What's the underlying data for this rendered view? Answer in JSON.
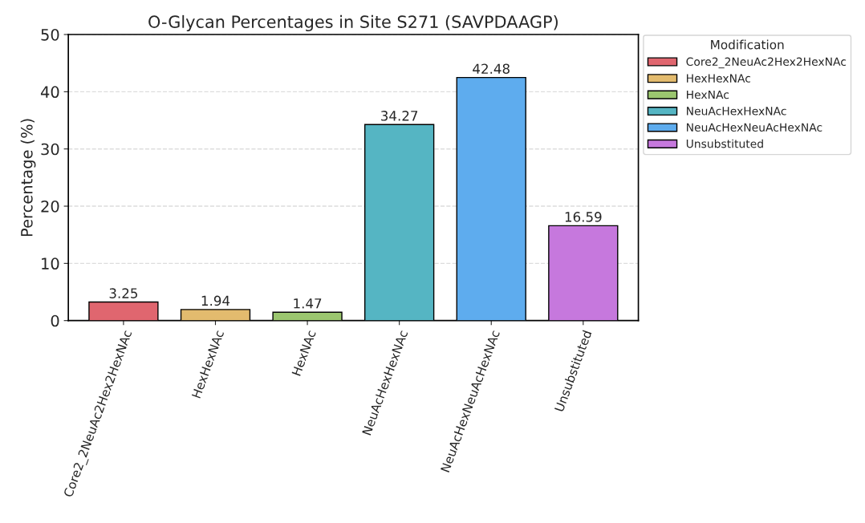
{
  "chart_data": {
    "type": "bar",
    "title": "O-Glycan Percentages in Site S271 (SAVPDAAGP)",
    "ylabel": "Percentage (%)",
    "legend_title": "Modification",
    "categories": [
      "Core2_2NeuAc2Hex2HexNAc",
      "HexHexNAc",
      "HexNAc",
      "NeuAcHexHexNAc",
      "NeuAcHexNeuAcHexNAc",
      "Unsubstituted"
    ],
    "series": [
      {
        "name": "Core2_2NeuAc2Hex2HexNAc",
        "color": "#e0666f",
        "values": [
          3.25,
          null,
          null,
          null,
          null,
          null
        ]
      },
      {
        "name": "HexHexNAc",
        "color": "#e3bb6e",
        "values": [
          null,
          1.94,
          null,
          null,
          null,
          null
        ]
      },
      {
        "name": "HexNAc",
        "color": "#9bc66f",
        "values": [
          null,
          null,
          1.47,
          null,
          null,
          null
        ]
      },
      {
        "name": "NeuAcHexHexNAc",
        "color": "#55b5c3",
        "values": [
          null,
          null,
          null,
          34.27,
          null,
          null
        ]
      },
      {
        "name": "NeuAcHexNeuAcHexNAc",
        "color": "#5eacee",
        "values": [
          null,
          null,
          null,
          null,
          42.48,
          null
        ]
      },
      {
        "name": "Unsubstituted",
        "color": "#c678dd",
        "values": [
          null,
          null,
          null,
          null,
          null,
          16.59
        ]
      }
    ],
    "ylim": [
      0,
      50
    ],
    "yticks": [
      0,
      10,
      20,
      30,
      40,
      50
    ],
    "grid": "y",
    "legend": "top right",
    "data_labels": true
  }
}
